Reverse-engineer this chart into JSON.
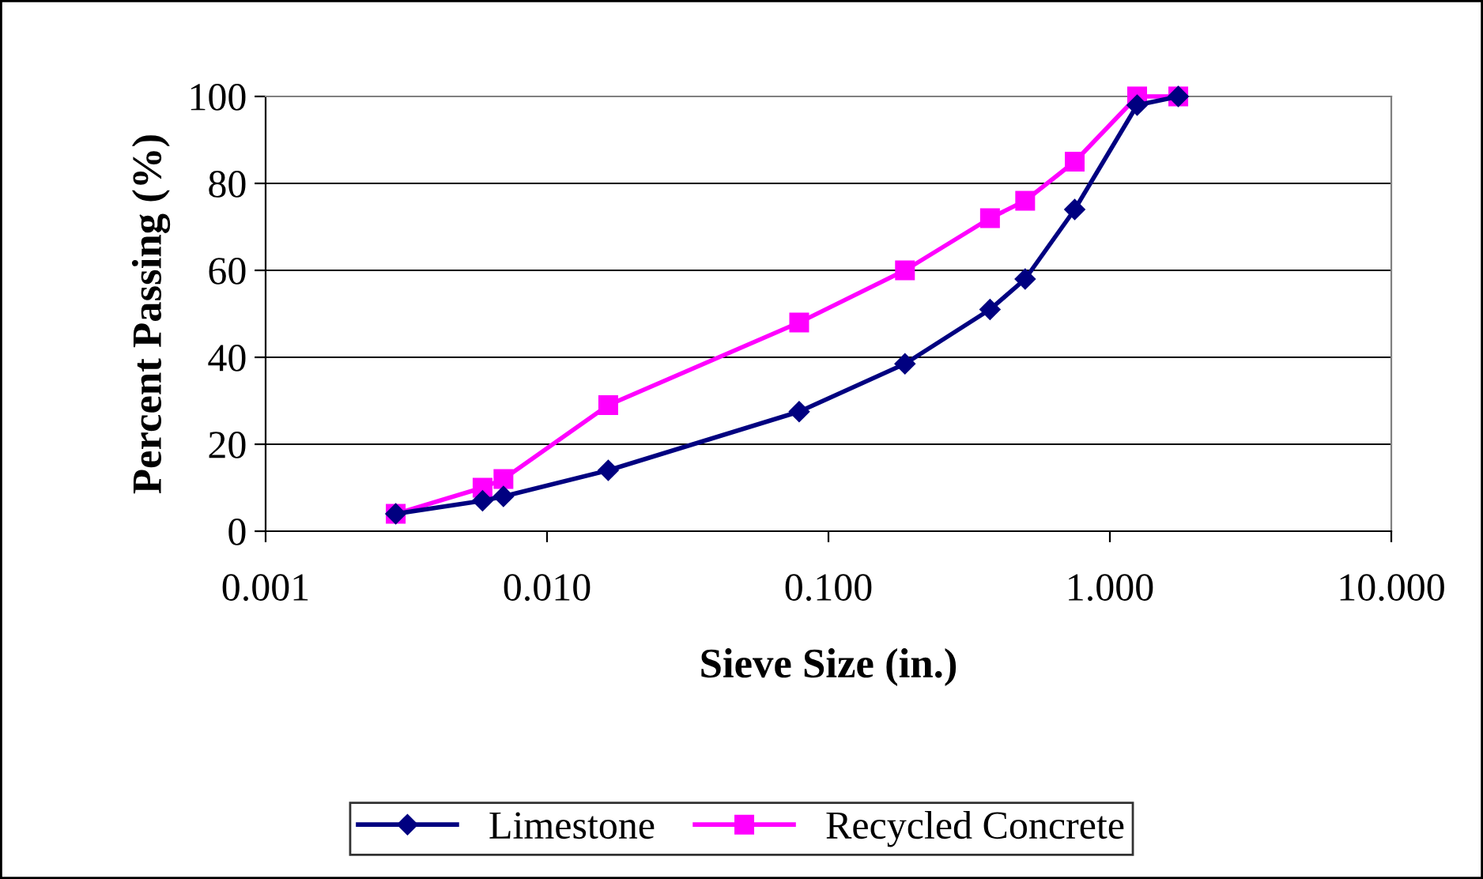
{
  "chart_data": {
    "type": "line",
    "xlabel": "Sieve Size (in.)",
    "ylabel": "Percent Passing (%)",
    "x": [
      0.0029,
      0.0059,
      0.007,
      0.0165,
      0.0787,
      0.187,
      0.375,
      0.5,
      0.75,
      1.25,
      1.75
    ],
    "series": [
      {
        "name": "Limestone",
        "color": "#000080",
        "marker": "diamond",
        "values": [
          4,
          7,
          8,
          14,
          27.5,
          38.5,
          51,
          58,
          74,
          98,
          100
        ]
      },
      {
        "name": "Recycled Concrete",
        "color": "#ff00ff",
        "marker": "square",
        "values": [
          4,
          10,
          12,
          29,
          48,
          60,
          72,
          76,
          85,
          100,
          100
        ]
      }
    ],
    "log": "x",
    "xlim": [
      0.001,
      10
    ],
    "xticks": [
      {
        "value": 0.001,
        "label": "0.001"
      },
      {
        "value": 0.01,
        "label": "0.010"
      },
      {
        "value": 0.1,
        "label": "0.100"
      },
      {
        "value": 1,
        "label": "1.000"
      },
      {
        "value": 10,
        "label": "10.000"
      }
    ],
    "ylim": [
      0,
      100
    ],
    "yticks": [
      0,
      20,
      40,
      60,
      80,
      100
    ],
    "grid": "y",
    "legend": "bottom",
    "line_style": "solid"
  }
}
